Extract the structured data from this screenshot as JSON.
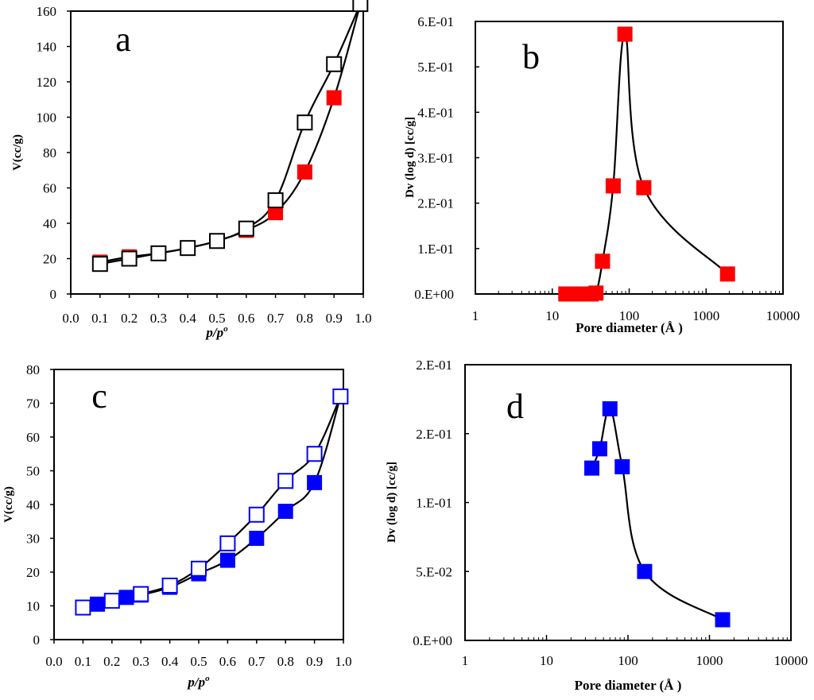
{
  "colors": {
    "red": "#ff0000",
    "blue": "#0000ff",
    "black": "#000000",
    "white": "#ffffff"
  },
  "chart_data": [
    {
      "id": "a",
      "type": "scatter",
      "label": "a",
      "xlabel": "p/p",
      "xlabel_sup": "o",
      "ylabel": "V(cc/g)",
      "xlim": [
        0,
        1.0
      ],
      "ylim": [
        0,
        160
      ],
      "xticks": [
        "0.0",
        "0.1",
        "0.2",
        "0.3",
        "0.4",
        "0.5",
        "0.6",
        "0.7",
        "0.8",
        "0.9",
        "1.0"
      ],
      "yticks": [
        "0",
        "20",
        "40",
        "60",
        "80",
        "100",
        "120",
        "140",
        "160"
      ],
      "series": [
        {
          "name": "adsorption",
          "marker": "filled",
          "color": "#ff0000",
          "x": [
            0.1,
            0.2,
            0.3,
            0.4,
            0.5,
            0.6,
            0.7,
            0.8,
            0.9,
            0.99
          ],
          "y": [
            18,
            21,
            23,
            26,
            30,
            36,
            46,
            69,
            111,
            164
          ]
        },
        {
          "name": "desorption",
          "marker": "open",
          "color": "#000000",
          "x": [
            0.1,
            0.2,
            0.3,
            0.4,
            0.5,
            0.6,
            0.7,
            0.8,
            0.9,
            0.99
          ],
          "y": [
            17,
            20,
            23,
            26,
            30,
            37,
            53,
            97,
            130,
            164
          ]
        }
      ]
    },
    {
      "id": "b",
      "type": "scatter",
      "label": "b",
      "xlabel": "Pore diameter (Å )",
      "ylabel": "Dv (log d) [cc/g]",
      "xscale": "log",
      "xlim": [
        1,
        10000
      ],
      "ylim": [
        0,
        0.6
      ],
      "xticks": [
        "1",
        "10",
        "100",
        "1000",
        "10000"
      ],
      "yticks": [
        "0.E+00",
        "1.E-01",
        "2.E-01",
        "3.E-01",
        "4.E-01",
        "5.E-01",
        "6.E-01"
      ],
      "series": [
        {
          "name": "pore size distribution",
          "marker": "filled",
          "color": "#ff0000",
          "x": [
            15,
            18,
            21,
            24,
            28,
            32,
            37,
            45,
            62,
            88,
            155,
            1900
          ],
          "y": [
            0,
            0,
            0,
            0,
            0,
            0,
            0.002,
            0.072,
            0.238,
            0.572,
            0.234,
            0.044
          ]
        }
      ]
    },
    {
      "id": "c",
      "type": "scatter",
      "label": "c",
      "xlabel": "p/p",
      "xlabel_sup": "o",
      "ylabel": "V(cc/g)",
      "xlim": [
        0,
        1.0
      ],
      "ylim": [
        0,
        80
      ],
      "xticks": [
        "0.0",
        "0.1",
        "0.2",
        "0.3",
        "0.4",
        "0.5",
        "0.6",
        "0.7",
        "0.8",
        "0.9",
        "1.0"
      ],
      "yticks": [
        "0",
        "10",
        "20",
        "30",
        "40",
        "50",
        "60",
        "70",
        "80"
      ],
      "series": [
        {
          "name": "adsorption",
          "marker": "filled",
          "color": "#0000ff",
          "x": [
            0.1,
            0.15,
            0.25,
            0.3,
            0.4,
            0.5,
            0.6,
            0.7,
            0.8,
            0.9,
            0.99
          ],
          "y": [
            9.5,
            10.5,
            12.5,
            13.2,
            15.5,
            19.5,
            23.5,
            30,
            38,
            46.5,
            72
          ]
        },
        {
          "name": "desorption",
          "marker": "open",
          "color": "#0000ff",
          "x": [
            0.1,
            0.2,
            0.3,
            0.4,
            0.5,
            0.6,
            0.7,
            0.8,
            0.9,
            0.99
          ],
          "y": [
            9.5,
            11.5,
            13.5,
            16,
            21,
            28.5,
            37,
            47,
            55,
            72
          ]
        }
      ]
    },
    {
      "id": "d",
      "type": "scatter",
      "label": "d",
      "xlabel": "Pore diameter (Å )",
      "ylabel": "Dv (log d) [cc/g]",
      "xscale": "log",
      "xlim": [
        1,
        10000
      ],
      "ylim": [
        0,
        0.2
      ],
      "xticks": [
        "1",
        "10",
        "100",
        "1000",
        "10000"
      ],
      "yticks": [
        "0.E+00",
        "5.E-02",
        "1.E-01",
        "2.E-01",
        "2.E-01"
      ],
      "series": [
        {
          "name": "pore size distribution",
          "marker": "filled",
          "color": "#0000ff",
          "x": [
            36,
            45,
            60,
            85,
            160,
            1450
          ],
          "y": [
            0.125,
            0.139,
            0.168,
            0.126,
            0.05,
            0.015
          ]
        }
      ]
    }
  ]
}
